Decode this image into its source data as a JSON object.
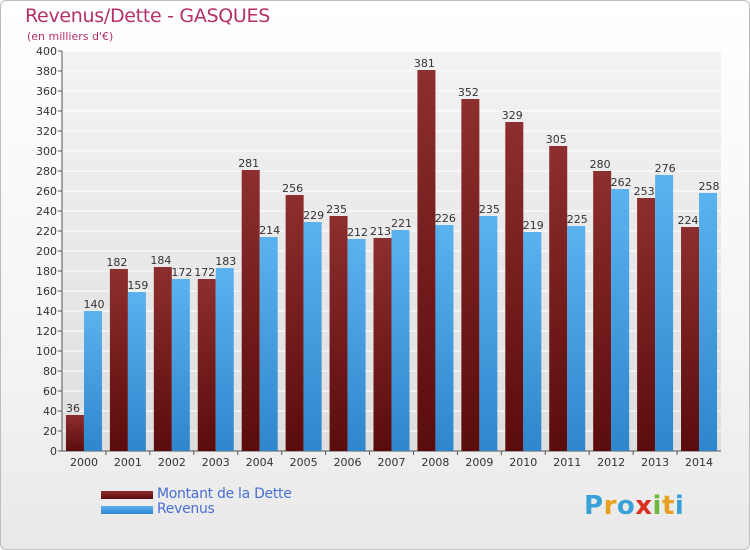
{
  "header": {
    "title": "Revenus/Dette - GASQUES",
    "subtitle": "(en milliers d'€)"
  },
  "chart_data": {
    "type": "bar",
    "title": "Revenus/Dette - GASQUES",
    "subtitle": "(en milliers d'€)",
    "xlabel": "",
    "ylabel": "",
    "ylim": [
      0,
      400
    ],
    "ytick_step": 20,
    "grid": true,
    "legend_position": "bottom-left",
    "categories": [
      "2000",
      "2001",
      "2002",
      "2003",
      "2004",
      "2005",
      "2006",
      "2007",
      "2008",
      "2009",
      "2010",
      "2011",
      "2012",
      "2013",
      "2014"
    ],
    "series": [
      {
        "name": "Montant de la Dette",
        "color": "#7a1c1c",
        "values": [
          36,
          182,
          184,
          172,
          281,
          256,
          235,
          213,
          381,
          352,
          329,
          305,
          280,
          253,
          224
        ]
      },
      {
        "name": "Revenus",
        "color": "#4aa3e8",
        "values": [
          140,
          159,
          172,
          183,
          214,
          229,
          212,
          221,
          226,
          235,
          219,
          225,
          262,
          276,
          258
        ]
      }
    ]
  },
  "legend": {
    "items": [
      {
        "label": "Montant de la Dette",
        "color": "#7a1c1c"
      },
      {
        "label": "Revenus",
        "color": "#4aa3e8"
      }
    ]
  },
  "logo": {
    "letters": [
      "P",
      "r",
      "o",
      "x",
      "i",
      "t",
      "i"
    ],
    "colors": [
      "#3aa0d8",
      "#e8a020",
      "#3aa0d8",
      "#d83020",
      "#6cb83a",
      "#e8a020",
      "#3aa0d8"
    ]
  }
}
